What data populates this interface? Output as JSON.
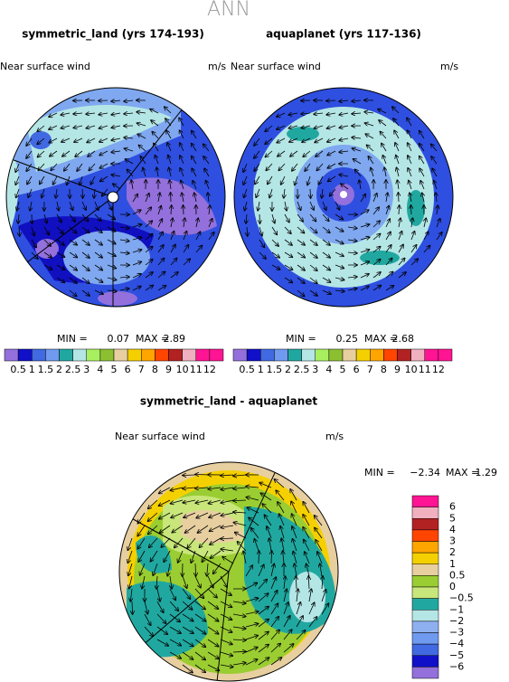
{
  "title": "ANN",
  "panels": [
    {
      "title": "symmetric_land (yrs 174-193)",
      "field": "Near surface wind",
      "units": "m/s",
      "min_label": "MIN =",
      "min": "0.07",
      "max_label": "MAX =",
      "max": "2.89"
    },
    {
      "title": "aquaplanet (yrs 117-136)",
      "field": "Near surface wind",
      "units": "m/s",
      "min_label": "MIN =",
      "min": "0.25",
      "max_label": "MAX =",
      "max": "2.68"
    }
  ],
  "colorbar": {
    "labels": [
      "0.5",
      "1",
      "1.5",
      "2",
      "2.5",
      "3",
      "4",
      "5",
      "6",
      "7",
      "8",
      "9",
      "10",
      "11",
      "12"
    ]
  },
  "difference": {
    "title": "symmetric_land - aquaplanet",
    "field": "Near surface wind",
    "units": "m/s",
    "min_label": "MIN =",
    "min": "−2.34",
    "max_label": "MAX =",
    "max": "1.29",
    "colorbar_labels": [
      "6",
      "5",
      "4",
      "3",
      "2",
      "1",
      "0.5",
      "0",
      "−0.5",
      "−1",
      "−2",
      "−3",
      "−4",
      "−5",
      "−6"
    ]
  }
}
